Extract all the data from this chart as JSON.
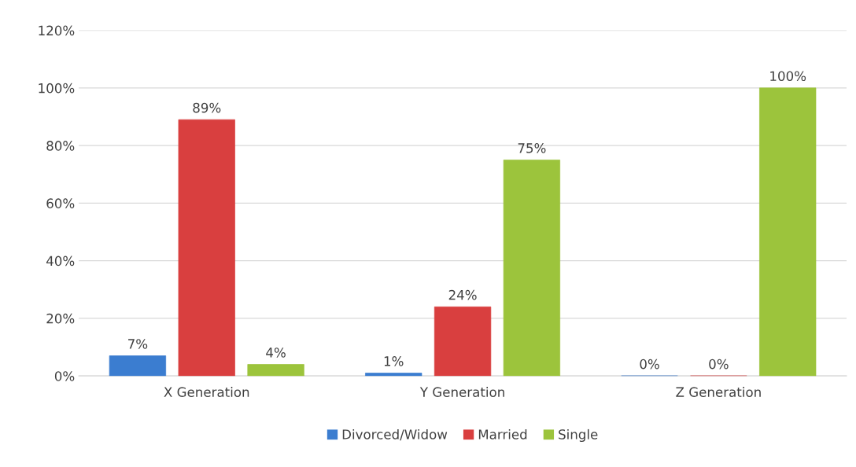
{
  "chart_data": {
    "type": "bar",
    "categories": [
      "X Generation",
      "Y Generation",
      "Z Generation"
    ],
    "series": [
      {
        "name": "Divorced/Widow",
        "color": "#3b7dd0",
        "values": [
          7,
          1,
          0
        ],
        "value_labels": [
          "7%",
          "1%",
          "0%"
        ]
      },
      {
        "name": "Married",
        "color": "#d93f3f",
        "values": [
          89,
          24,
          0
        ],
        "value_labels": [
          "89%",
          "24%",
          "0%"
        ]
      },
      {
        "name": "Single",
        "color": "#9cc43c",
        "values": [
          4,
          75,
          100
        ],
        "value_labels": [
          "4%",
          "75%",
          "100%"
        ]
      }
    ],
    "ylim": [
      0,
      120
    ],
    "yticks": [
      {
        "value": 0,
        "label": "0%"
      },
      {
        "value": 20,
        "label": "20%"
      },
      {
        "value": 40,
        "label": "40%"
      },
      {
        "value": 60,
        "label": "60%"
      },
      {
        "value": 80,
        "label": "80%"
      },
      {
        "value": 100,
        "label": "100%"
      },
      {
        "value": 120,
        "label": "120%"
      }
    ],
    "grid": "y",
    "legend": "bottom"
  }
}
